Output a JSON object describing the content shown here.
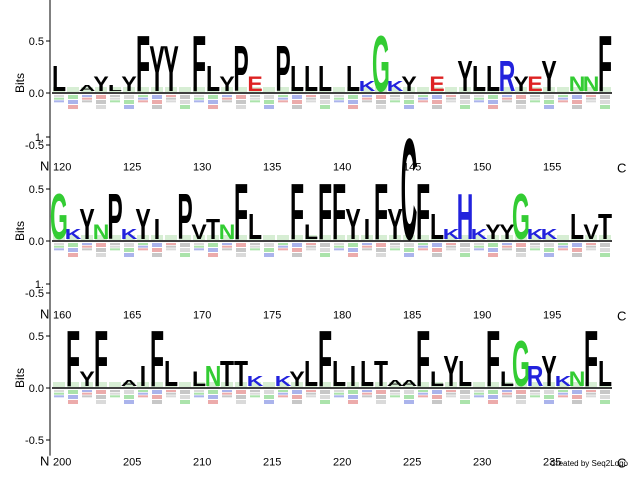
{
  "chart_data": {
    "type": "sequence-logo",
    "ylabel": "Bits",
    "ylim": [
      -0.7,
      1.2
    ],
    "yticks": [
      1.0,
      0.5,
      0.0,
      -0.5
    ],
    "yticklabels": [
      "1.",
      "0.5",
      "0.0",
      "-0.5"
    ],
    "n_label": "N",
    "c_label": "C",
    "colors": {
      "hydrophobic": "#000000",
      "polar": "#33cc33",
      "basic": "#2222dd",
      "acidic": "#dd2222"
    },
    "rows": [
      {
        "start": 120,
        "position_labels": [
          "120",
          "125",
          "130",
          "135",
          "140",
          "145",
          "150",
          "155"
        ],
        "positions": [
          {
            "pos": 120,
            "top": "L",
            "h": 0.25
          },
          {
            "pos": 121,
            "top": "",
            "h": 0.05
          },
          {
            "pos": 122,
            "top": "A",
            "h": 0.05
          },
          {
            "pos": 123,
            "top": "Y",
            "h": 0.15
          },
          {
            "pos": 124,
            "top": "L",
            "h": 0.05
          },
          {
            "pos": 125,
            "top": "Y",
            "h": 0.15
          },
          {
            "pos": 126,
            "top": "F",
            "h": 0.55
          },
          {
            "pos": 127,
            "top": "Y",
            "h": 0.45
          },
          {
            "pos": 128,
            "top": "Y",
            "h": 0.45
          },
          {
            "pos": 129,
            "top": "",
            "h": 0.1
          },
          {
            "pos": 130,
            "top": "F",
            "h": 0.55
          },
          {
            "pos": 131,
            "top": "L",
            "h": 0.25
          },
          {
            "pos": 132,
            "top": "Y",
            "h": 0.15
          },
          {
            "pos": 133,
            "top": "P",
            "h": 0.45
          },
          {
            "pos": 134,
            "top": "E",
            "h": 0.15
          },
          {
            "pos": 135,
            "top": "",
            "h": 0.05
          },
          {
            "pos": 136,
            "top": "P",
            "h": 0.45
          },
          {
            "pos": 137,
            "top": "L",
            "h": 0.25
          },
          {
            "pos": 138,
            "top": "L",
            "h": 0.25
          },
          {
            "pos": 139,
            "top": "L",
            "h": 0.25
          },
          {
            "pos": 140,
            "top": "",
            "h": 0.05
          },
          {
            "pos": 141,
            "top": "L",
            "h": 0.25
          },
          {
            "pos": 142,
            "top": "K",
            "h": 0.1
          },
          {
            "pos": 143,
            "top": "G",
            "h": 0.55
          },
          {
            "pos": 144,
            "top": "K",
            "h": 0.1
          },
          {
            "pos": 145,
            "top": "Y",
            "h": 0.15
          },
          {
            "pos": 146,
            "top": "",
            "h": 0.05
          },
          {
            "pos": 147,
            "top": "E",
            "h": 0.15
          },
          {
            "pos": 148,
            "top": "",
            "h": 0.05
          },
          {
            "pos": 149,
            "top": "Y",
            "h": 0.3
          },
          {
            "pos": 150,
            "top": "L",
            "h": 0.25
          },
          {
            "pos": 151,
            "top": "L",
            "h": 0.25
          },
          {
            "pos": 152,
            "top": "R",
            "h": 0.3
          },
          {
            "pos": 153,
            "top": "Y",
            "h": 0.15
          },
          {
            "pos": 154,
            "top": "E",
            "h": 0.15
          },
          {
            "pos": 155,
            "top": "Y",
            "h": 0.3
          },
          {
            "pos": 156,
            "top": "",
            "h": 0.1
          },
          {
            "pos": 157,
            "top": "N",
            "h": 0.15
          },
          {
            "pos": 158,
            "top": "N",
            "h": 0.15
          },
          {
            "pos": 159,
            "top": "F",
            "h": 0.55
          }
        ]
      },
      {
        "start": 160,
        "position_labels": [
          "160",
          "165",
          "170",
          "175",
          "180",
          "185",
          "190",
          "195"
        ],
        "positions": [
          {
            "pos": 160,
            "top": "G",
            "h": 0.45
          },
          {
            "pos": 161,
            "top": "K",
            "h": 0.1
          },
          {
            "pos": 162,
            "top": "Y",
            "h": 0.3
          },
          {
            "pos": 163,
            "top": "N",
            "h": 0.15
          },
          {
            "pos": 164,
            "top": "P",
            "h": 0.45
          },
          {
            "pos": 165,
            "top": "K",
            "h": 0.1
          },
          {
            "pos": 166,
            "top": "Y",
            "h": 0.3
          },
          {
            "pos": 167,
            "top": "I",
            "h": 0.2
          },
          {
            "pos": 168,
            "top": "",
            "h": 0.05
          },
          {
            "pos": 169,
            "top": "P",
            "h": 0.45
          },
          {
            "pos": 170,
            "top": "V",
            "h": 0.15
          },
          {
            "pos": 171,
            "top": "T",
            "h": 0.2
          },
          {
            "pos": 172,
            "top": "N",
            "h": 0.15
          },
          {
            "pos": 173,
            "top": "F",
            "h": 0.55
          },
          {
            "pos": 174,
            "top": "L",
            "h": 0.25
          },
          {
            "pos": 175,
            "top": "",
            "h": 0.05
          },
          {
            "pos": 176,
            "top": "",
            "h": 0.05
          },
          {
            "pos": 177,
            "top": "F",
            "h": 0.55
          },
          {
            "pos": 178,
            "top": "L",
            "h": 0.15
          },
          {
            "pos": 179,
            "top": "F",
            "h": 0.55
          },
          {
            "pos": 180,
            "top": "F",
            "h": 0.55
          },
          {
            "pos": 181,
            "top": "Y",
            "h": 0.3
          },
          {
            "pos": 182,
            "top": "I",
            "h": 0.2
          },
          {
            "pos": 183,
            "top": "F",
            "h": 0.55
          },
          {
            "pos": 184,
            "top": "Y",
            "h": 0.3
          },
          {
            "pos": 185,
            "top": "C",
            "h": 1.0
          },
          {
            "pos": 186,
            "top": "F",
            "h": 0.55
          },
          {
            "pos": 187,
            "top": "L",
            "h": 0.25
          },
          {
            "pos": 188,
            "top": "K",
            "h": 0.1
          },
          {
            "pos": 189,
            "top": "H",
            "h": 0.45
          },
          {
            "pos": 190,
            "top": "K",
            "h": 0.1
          },
          {
            "pos": 191,
            "top": "Y",
            "h": 0.15
          },
          {
            "pos": 192,
            "top": "Y",
            "h": 0.15
          },
          {
            "pos": 193,
            "top": "G",
            "h": 0.45
          },
          {
            "pos": 194,
            "top": "K",
            "h": 0.1
          },
          {
            "pos": 195,
            "top": "K",
            "h": 0.1
          },
          {
            "pos": 196,
            "top": "",
            "h": 0.05
          },
          {
            "pos": 197,
            "top": "L",
            "h": 0.25
          },
          {
            "pos": 198,
            "top": "V",
            "h": 0.15
          },
          {
            "pos": 199,
            "top": "T",
            "h": 0.25
          }
        ]
      },
      {
        "start": 200,
        "position_labels": [
          "200",
          "205",
          "210",
          "215",
          "220",
          "225",
          "230",
          "235"
        ],
        "positions": [
          {
            "pos": 200,
            "top": "",
            "h": 0.05
          },
          {
            "pos": 201,
            "top": "F",
            "h": 0.55
          },
          {
            "pos": 202,
            "top": "Y",
            "h": 0.15
          },
          {
            "pos": 203,
            "top": "F",
            "h": 0.55
          },
          {
            "pos": 204,
            "top": "",
            "h": 0.05
          },
          {
            "pos": 205,
            "top": "A",
            "h": 0.05
          },
          {
            "pos": 206,
            "top": "I",
            "h": 0.2
          },
          {
            "pos": 207,
            "top": "F",
            "h": 0.55
          },
          {
            "pos": 208,
            "top": "L",
            "h": 0.25
          },
          {
            "pos": 209,
            "top": "",
            "h": 0.05
          },
          {
            "pos": 210,
            "top": "L",
            "h": 0.15
          },
          {
            "pos": 211,
            "top": "N",
            "h": 0.2
          },
          {
            "pos": 212,
            "top": "T",
            "h": 0.25
          },
          {
            "pos": 213,
            "top": "T",
            "h": 0.25
          },
          {
            "pos": 214,
            "top": "K",
            "h": 0.1
          },
          {
            "pos": 215,
            "top": "",
            "h": 0.05
          },
          {
            "pos": 216,
            "top": "K",
            "h": 0.1
          },
          {
            "pos": 217,
            "top": "Y",
            "h": 0.15
          },
          {
            "pos": 218,
            "top": "L",
            "h": 0.25
          },
          {
            "pos": 219,
            "top": "F",
            "h": 0.55
          },
          {
            "pos": 220,
            "top": "L",
            "h": 0.25
          },
          {
            "pos": 221,
            "top": "I",
            "h": 0.2
          },
          {
            "pos": 222,
            "top": "L",
            "h": 0.25
          },
          {
            "pos": 223,
            "top": "T",
            "h": 0.25
          },
          {
            "pos": 224,
            "top": "A",
            "h": 0.05
          },
          {
            "pos": 225,
            "top": "A",
            "h": 0.05
          },
          {
            "pos": 226,
            "top": "F",
            "h": 0.55
          },
          {
            "pos": 227,
            "top": "L",
            "h": 0.15
          },
          {
            "pos": 228,
            "top": "Y",
            "h": 0.3
          },
          {
            "pos": 229,
            "top": "L",
            "h": 0.25
          },
          {
            "pos": 230,
            "top": "",
            "h": 0.05
          },
          {
            "pos": 231,
            "top": "F",
            "h": 0.55
          },
          {
            "pos": 232,
            "top": "L",
            "h": 0.15
          },
          {
            "pos": 233,
            "top": "G",
            "h": 0.45
          },
          {
            "pos": 234,
            "top": "R",
            "h": 0.2
          },
          {
            "pos": 235,
            "top": "Y",
            "h": 0.3
          },
          {
            "pos": 236,
            "top": "K",
            "h": 0.1
          },
          {
            "pos": 237,
            "top": "N",
            "h": 0.15
          },
          {
            "pos": 238,
            "top": "F",
            "h": 0.55
          },
          {
            "pos": 239,
            "top": "L",
            "h": 0.25
          }
        ]
      }
    ]
  },
  "credit": "Created by Seq2Logo"
}
